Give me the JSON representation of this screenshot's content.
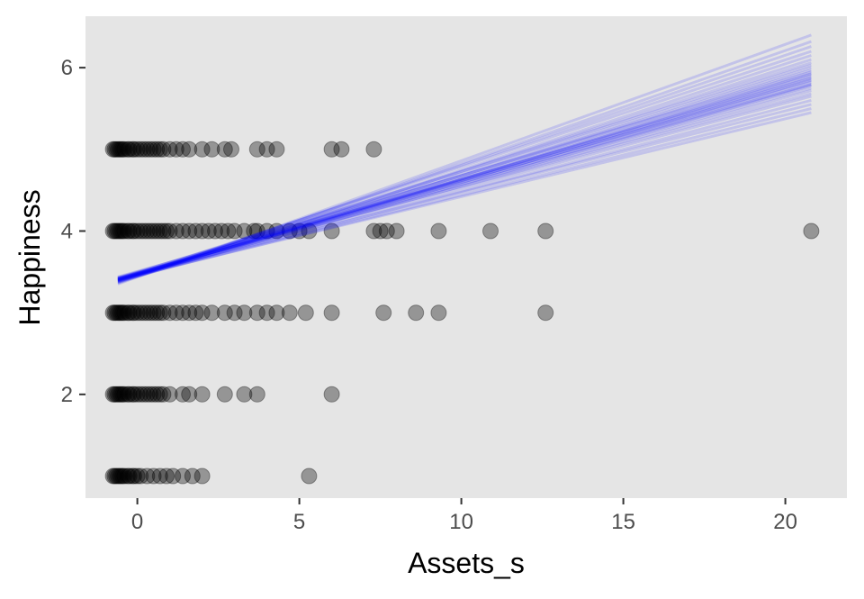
{
  "chart_data": {
    "type": "scatter",
    "title": "",
    "xlabel": "Assets_s",
    "ylabel": "Happiness",
    "xlim": [
      -1.6,
      21.9
    ],
    "ylim": [
      0.73,
      6.63
    ],
    "x_ticks": [
      0,
      5,
      10,
      15,
      20
    ],
    "x_tick_labels": [
      "0",
      "5",
      "10",
      "15",
      "20"
    ],
    "y_ticks": [
      2,
      4,
      6
    ],
    "y_tick_labels": [
      "2",
      "4",
      "6"
    ],
    "grid": false,
    "panel_background": "#e5e5e5",
    "point_color": "#000000",
    "point_alpha": 0.35,
    "line_color": "#0000ff",
    "line_alpha": 0.15,
    "points": [
      {
        "y": 5,
        "x": [
          -0.75,
          -0.7,
          -0.65,
          -0.6,
          -0.55,
          -0.5,
          -0.45,
          -0.4,
          -0.3,
          -0.25,
          -0.15,
          -0.1,
          0,
          0.1,
          0.2,
          0.3,
          0.4,
          0.5,
          0.6,
          0.7,
          0.8,
          1.0,
          1.2,
          1.4,
          1.6,
          2.0,
          2.3,
          2.7,
          2.9,
          3.7,
          4.0,
          4.3,
          6.0,
          6.3,
          7.3
        ]
      },
      {
        "y": 4,
        "x": [
          -0.75,
          -0.7,
          -0.65,
          -0.6,
          -0.55,
          -0.5,
          -0.45,
          -0.4,
          -0.3,
          -0.25,
          -0.15,
          -0.1,
          0,
          0.1,
          0.2,
          0.3,
          0.4,
          0.5,
          0.6,
          0.7,
          0.8,
          0.9,
          1.0,
          1.2,
          1.4,
          1.6,
          1.8,
          2.0,
          2.2,
          2.4,
          2.6,
          2.8,
          3.0,
          3.3,
          3.6,
          3.7,
          4.0,
          4.3,
          4.7,
          5.0,
          5.3,
          6.0,
          7.3,
          7.5,
          7.7,
          8.0,
          9.3,
          10.9,
          12.6,
          20.8
        ]
      },
      {
        "y": 3,
        "x": [
          -0.75,
          -0.7,
          -0.65,
          -0.6,
          -0.55,
          -0.5,
          -0.45,
          -0.4,
          -0.3,
          -0.25,
          -0.15,
          -0.1,
          0,
          0.1,
          0.2,
          0.3,
          0.4,
          0.5,
          0.6,
          0.7,
          0.8,
          1.0,
          1.2,
          1.4,
          1.6,
          1.8,
          2.0,
          2.3,
          2.7,
          3.0,
          3.3,
          3.7,
          4.0,
          4.3,
          4.7,
          5.2,
          6.0,
          7.6,
          8.6,
          9.3,
          12.6
        ]
      },
      {
        "y": 2,
        "x": [
          -0.75,
          -0.7,
          -0.65,
          -0.6,
          -0.55,
          -0.5,
          -0.45,
          -0.4,
          -0.3,
          -0.25,
          -0.15,
          -0.1,
          0,
          0.1,
          0.2,
          0.3,
          0.4,
          0.5,
          0.6,
          0.7,
          0.8,
          1.0,
          1.4,
          1.6,
          2.0,
          2.7,
          3.3,
          3.7,
          6.0
        ]
      },
      {
        "y": 1,
        "x": [
          -0.75,
          -0.7,
          -0.65,
          -0.6,
          -0.55,
          -0.5,
          -0.45,
          -0.4,
          -0.3,
          -0.25,
          -0.15,
          -0.1,
          0,
          0.1,
          0.3,
          0.5,
          0.7,
          0.9,
          1.1,
          1.4,
          1.7,
          2.0,
          5.3
        ]
      }
    ],
    "lines": [
      {
        "x": [
          -0.6,
          20.8
        ],
        "y": [
          3.41,
          5.45
        ]
      },
      {
        "x": [
          -0.6,
          20.8
        ],
        "y": [
          3.4,
          5.5
        ]
      },
      {
        "x": [
          -0.6,
          20.8
        ],
        "y": [
          3.42,
          5.55
        ]
      },
      {
        "x": [
          -0.6,
          20.8
        ],
        "y": [
          3.39,
          5.6
        ]
      },
      {
        "x": [
          -0.6,
          20.8
        ],
        "y": [
          3.41,
          5.65
        ]
      },
      {
        "x": [
          -0.6,
          20.8
        ],
        "y": [
          3.43,
          5.68
        ]
      },
      {
        "x": [
          -0.6,
          20.8
        ],
        "y": [
          3.4,
          5.72
        ]
      },
      {
        "x": [
          -0.6,
          20.8
        ],
        "y": [
          3.42,
          5.75
        ]
      },
      {
        "x": [
          -0.6,
          20.8
        ],
        "y": [
          3.38,
          5.78
        ]
      },
      {
        "x": [
          -0.6,
          20.8
        ],
        "y": [
          3.41,
          5.8
        ]
      },
      {
        "x": [
          -0.6,
          20.8
        ],
        "y": [
          3.44,
          5.82
        ]
      },
      {
        "x": [
          -0.6,
          20.8
        ],
        "y": [
          3.39,
          5.85
        ]
      },
      {
        "x": [
          -0.6,
          20.8
        ],
        "y": [
          3.42,
          5.87
        ]
      },
      {
        "x": [
          -0.6,
          20.8
        ],
        "y": [
          3.4,
          5.9
        ]
      },
      {
        "x": [
          -0.6,
          20.8
        ],
        "y": [
          3.37,
          5.92
        ]
      },
      {
        "x": [
          -0.6,
          20.8
        ],
        "y": [
          3.43,
          5.95
        ]
      },
      {
        "x": [
          -0.6,
          20.8
        ],
        "y": [
          3.41,
          5.97
        ]
      },
      {
        "x": [
          -0.6,
          20.8
        ],
        "y": [
          3.38,
          6.0
        ]
      },
      {
        "x": [
          -0.6,
          20.8
        ],
        "y": [
          3.4,
          6.03
        ]
      },
      {
        "x": [
          -0.6,
          20.8
        ],
        "y": [
          3.42,
          6.06
        ]
      },
      {
        "x": [
          -0.6,
          20.8
        ],
        "y": [
          3.39,
          6.1
        ]
      },
      {
        "x": [
          -0.6,
          20.8
        ],
        "y": [
          3.37,
          6.15
        ]
      },
      {
        "x": [
          -0.6,
          20.8
        ],
        "y": [
          3.4,
          6.2
        ]
      },
      {
        "x": [
          -0.6,
          20.8
        ],
        "y": [
          3.38,
          6.26
        ]
      },
      {
        "x": [
          -0.6,
          20.8
        ],
        "y": [
          3.36,
          6.32
        ]
      },
      {
        "x": [
          -0.6,
          20.8
        ],
        "y": [
          3.35,
          6.4
        ]
      },
      {
        "x": [
          -0.6,
          20.8
        ],
        "y": [
          3.41,
          5.84
        ]
      },
      {
        "x": [
          -0.6,
          20.8
        ],
        "y": [
          3.4,
          5.88
        ]
      },
      {
        "x": [
          -0.6,
          20.8
        ],
        "y": [
          3.42,
          5.79
        ]
      },
      {
        "x": [
          -0.6,
          20.8
        ],
        "y": [
          3.39,
          5.93
        ]
      }
    ]
  }
}
